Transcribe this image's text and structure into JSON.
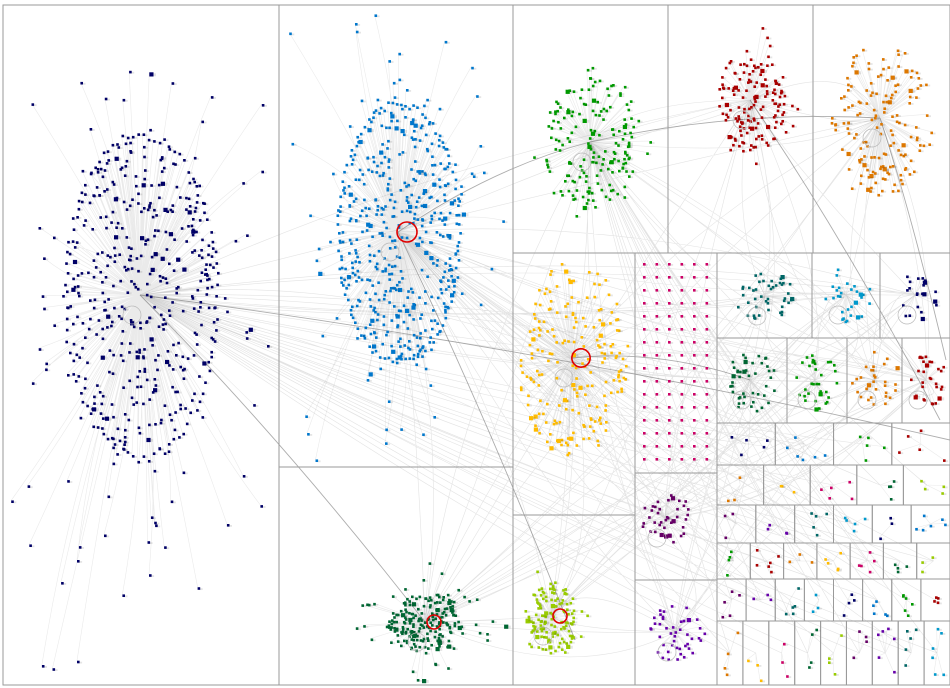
{
  "chart_data": {
    "type": "network",
    "layout": "clustered-group-in-a-box",
    "groups": [
      {
        "id": "G1",
        "color": "#000066",
        "nodes": 560,
        "hub": true
      },
      {
        "id": "G2",
        "color": "#0077cc",
        "nodes": 470,
        "hub": true,
        "hub_highlight": "#e00000"
      },
      {
        "id": "G3",
        "color": "#009900",
        "nodes": 180,
        "hub": true
      },
      {
        "id": "G4",
        "color": "#aa0000",
        "nodes": 150,
        "hub": true
      },
      {
        "id": "G5",
        "color": "#dd7700",
        "nodes": 160,
        "hub": true
      },
      {
        "id": "G6",
        "color": "#ffbb00",
        "nodes": 200,
        "hub": true,
        "hub_highlight": "#e00000"
      },
      {
        "id": "G7",
        "color": "#cc0066",
        "nodes": 100,
        "hub": false
      },
      {
        "id": "G8",
        "color": "#006633",
        "nodes": 220,
        "hub": true,
        "hub_highlight": "#e00000"
      },
      {
        "id": "G9",
        "color": "#99cc00",
        "nodes": 140,
        "hub": true,
        "hub_highlight": "#e00000"
      },
      {
        "id": "G10",
        "color": "#660066",
        "nodes": 40,
        "hub": true
      },
      {
        "id": "G11",
        "color": "#6600aa",
        "nodes": 45,
        "hub": true
      },
      {
        "id": "G12",
        "color": "#006666",
        "nodes": 45,
        "hub": true
      },
      {
        "id": "G13",
        "color": "#0099cc",
        "nodes": 30,
        "hub": true
      },
      {
        "id": "G14",
        "color": "#000066",
        "nodes": 22,
        "hub": true
      },
      {
        "id": "G15",
        "color": "#006633",
        "nodes": 45,
        "hub": true
      },
      {
        "id": "G16",
        "color": "#009900",
        "nodes": 35,
        "hub": true
      },
      {
        "id": "G17",
        "color": "#dd7700",
        "nodes": 30,
        "hub": true
      },
      {
        "id": "G18",
        "color": "#aa0000",
        "nodes": 30,
        "hub": true
      }
    ],
    "palette_small_groups": [
      "#000066",
      "#0077cc",
      "#009900",
      "#aa0000",
      "#dd7700",
      "#ffbb00",
      "#cc0066",
      "#006633",
      "#99cc00",
      "#660066",
      "#6600aa",
      "#006666",
      "#0099cc"
    ],
    "background": "#ffffff",
    "edge_color": "#7f7f7f",
    "frame_color": "#9a9a9a"
  }
}
